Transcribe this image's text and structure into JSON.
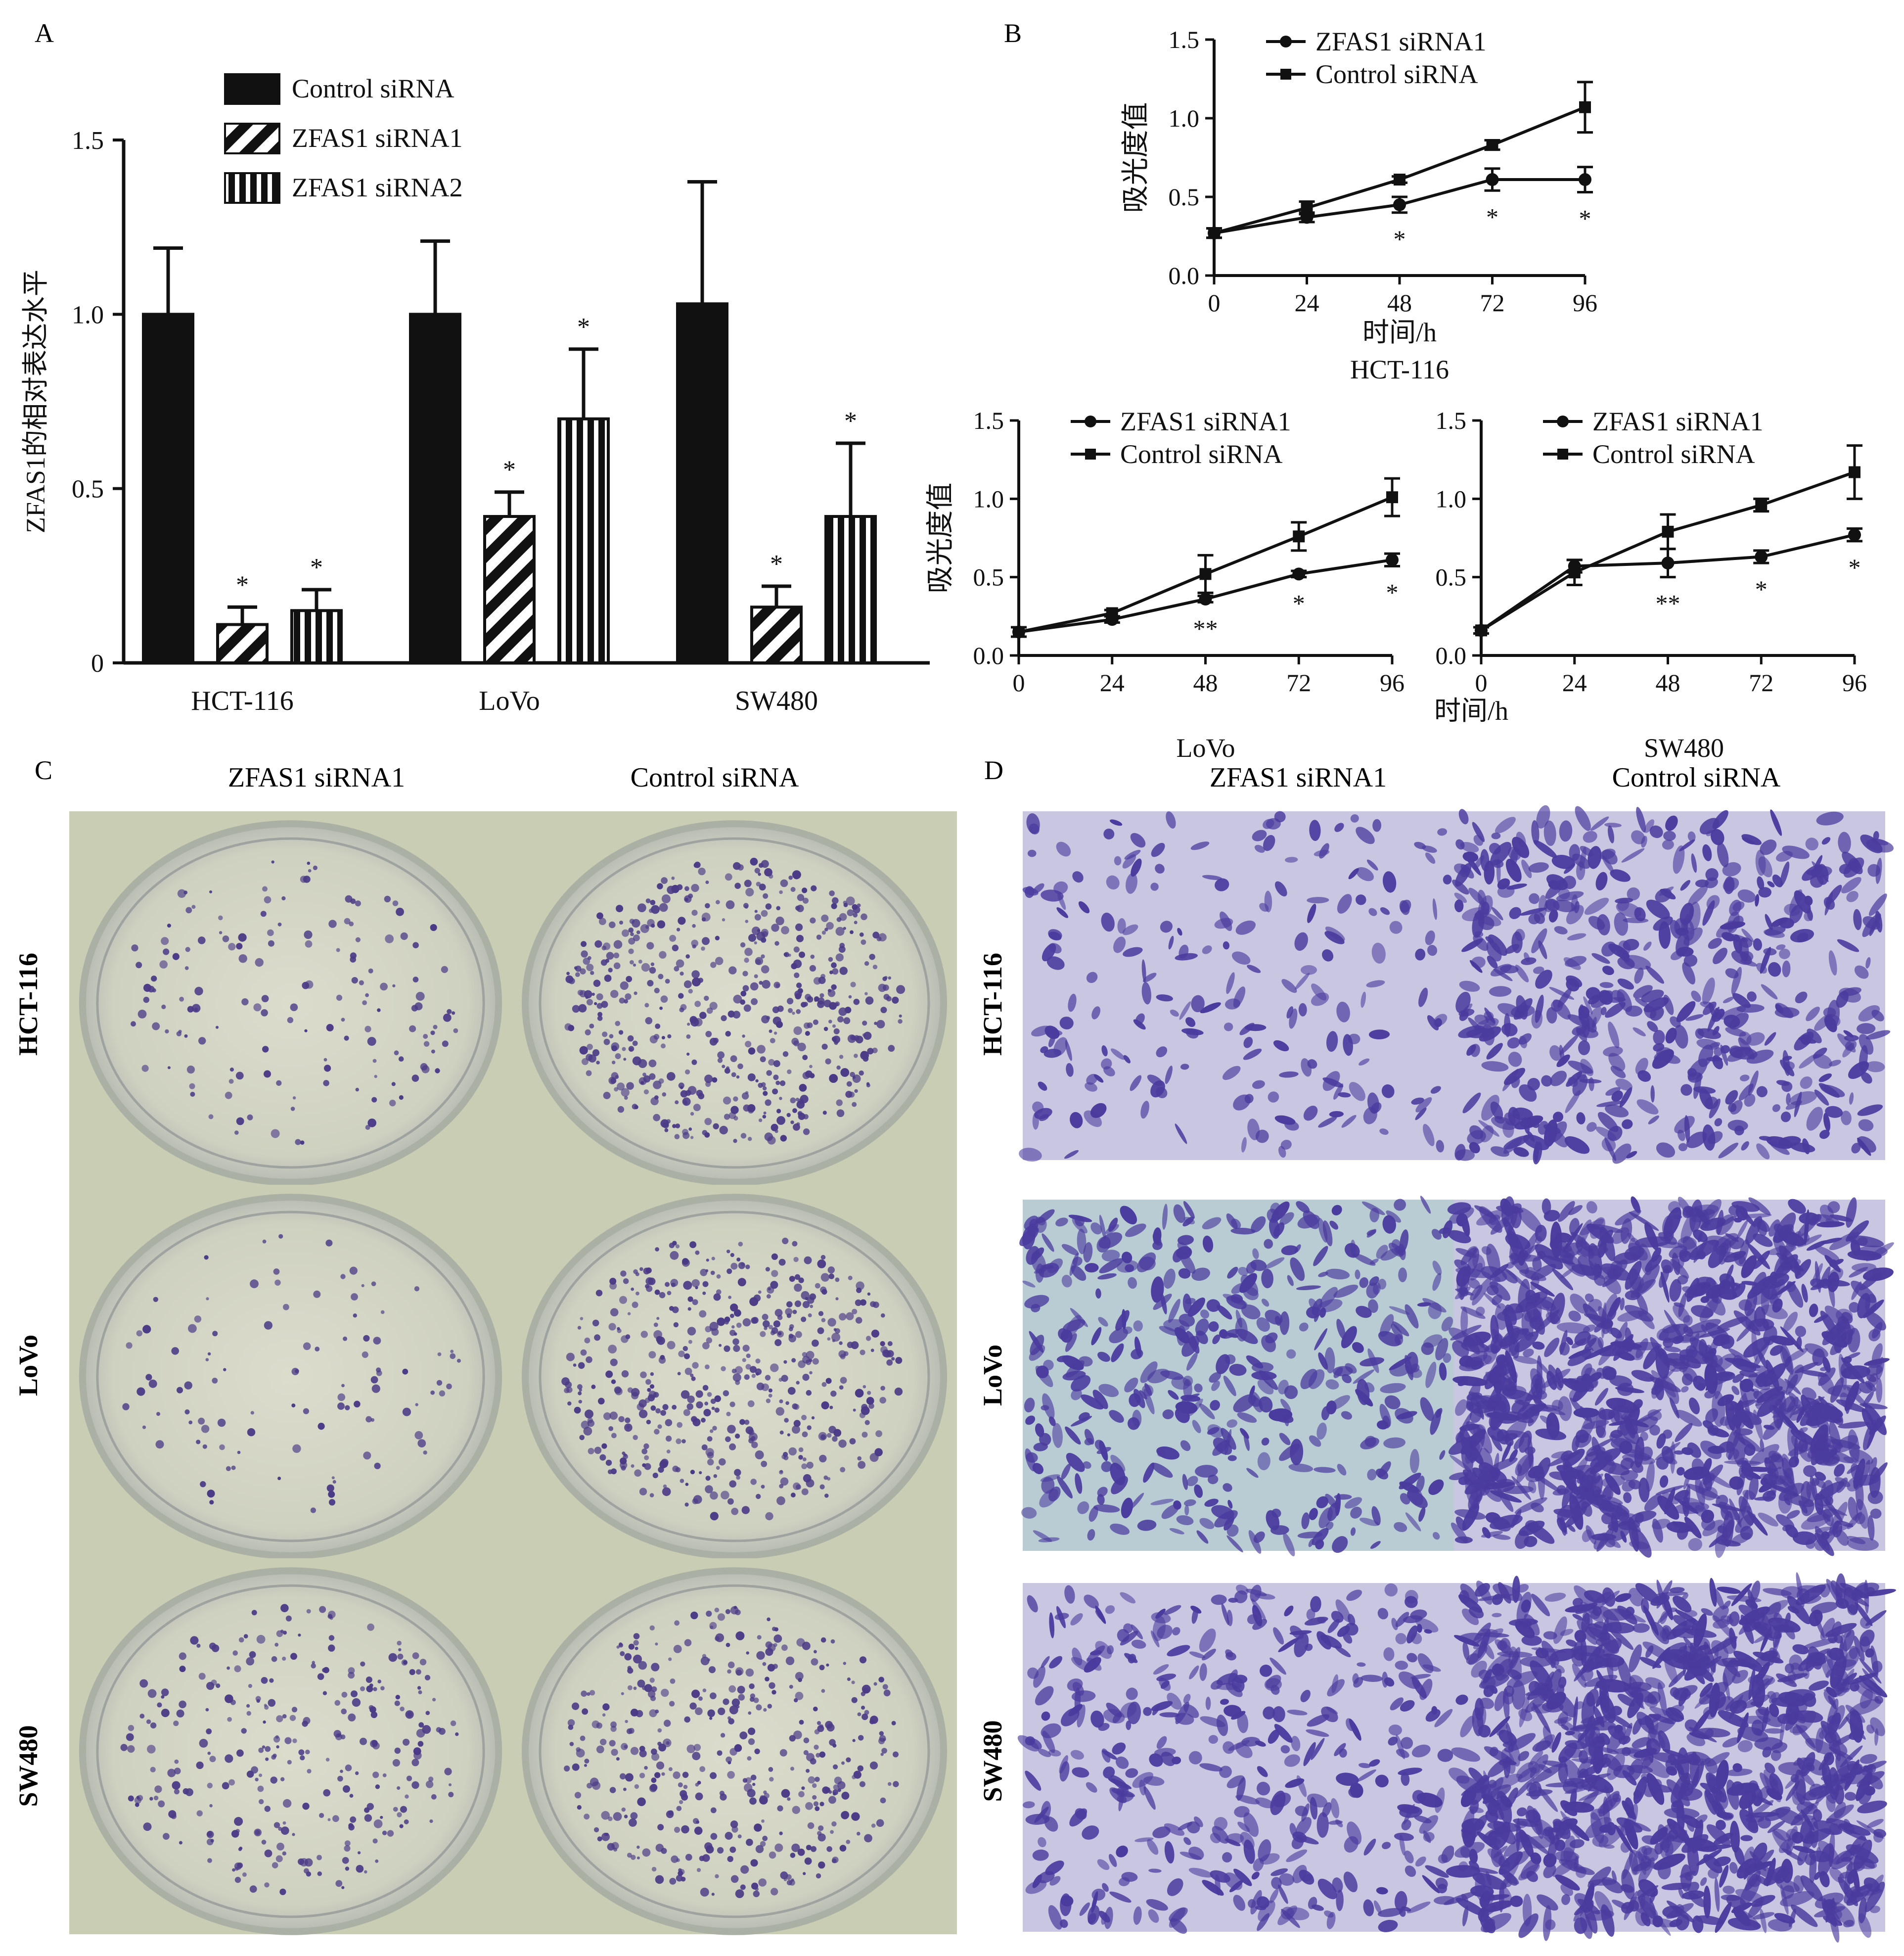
{
  "panels": {
    "A": "A",
    "B": "B",
    "C": "C",
    "D": "D"
  },
  "colors": {
    "ink": "#111111",
    "plate_bg": "#c9cdb4",
    "plate_ring": "#aab0a4",
    "colony": "#4b3a86",
    "micro_bg": "#c8c6e0",
    "micro_bg_lovo": "#b9ccd4",
    "cell": "#4a3b9e"
  },
  "chart_data": [
    {
      "type": "bar",
      "panel": "A",
      "categories": [
        "HCT-116",
        "LoVo",
        "SW480"
      ],
      "series": [
        {
          "name": "Control siRNA",
          "pattern": "solid",
          "values": [
            1.0,
            1.0,
            1.03
          ],
          "errors": [
            0.19,
            0.21,
            0.35
          ],
          "sig": [
            "",
            "",
            ""
          ]
        },
        {
          "name": "ZFAS1 siRNA1",
          "pattern": "diagonal",
          "values": [
            0.11,
            0.42,
            0.16
          ],
          "errors": [
            0.05,
            0.07,
            0.06
          ],
          "sig": [
            "*",
            "*",
            "*"
          ]
        },
        {
          "name": "ZFAS1 siRNA2",
          "pattern": "vertical",
          "values": [
            0.15,
            0.7,
            0.42
          ],
          "errors": [
            0.06,
            0.2,
            0.21
          ],
          "sig": [
            "*",
            "*",
            "*"
          ]
        }
      ],
      "ylabel": "ZFAS1的相对表达水平",
      "ylim": [
        0,
        1.5
      ],
      "yticks": [
        "0",
        "0.5",
        "1.0",
        "1.5"
      ],
      "legend": "top-left"
    },
    {
      "type": "line",
      "panel": "B",
      "title": "HCT-116",
      "xlabel": "时间/h",
      "ylabel": "吸光度值",
      "x": [
        0,
        24,
        48,
        72,
        96
      ],
      "xticks": [
        "0",
        "24",
        "48",
        "72",
        "96"
      ],
      "ylim": [
        0,
        1.5
      ],
      "yticks": [
        "0.0",
        "0.5",
        "1.0",
        "1.5"
      ],
      "series": [
        {
          "name": "ZFAS1 siRNA1",
          "marker": "circle",
          "values": [
            0.27,
            0.37,
            0.45,
            0.61,
            0.61
          ],
          "errors": [
            0.03,
            0.03,
            0.05,
            0.07,
            0.08
          ]
        },
        {
          "name": "Control siRNA",
          "marker": "square",
          "values": [
            0.27,
            0.43,
            0.61,
            0.83,
            1.07
          ],
          "errors": [
            0.03,
            0.04,
            0.02,
            0.03,
            0.16
          ]
        }
      ],
      "annotations": [
        {
          "x": 48,
          "text": "*"
        },
        {
          "x": 72,
          "text": "*"
        },
        {
          "x": 96,
          "text": "*"
        }
      ]
    },
    {
      "type": "line",
      "panel": "B",
      "title": "LoVo",
      "xlabel": "时间/h",
      "ylabel": "吸光度值",
      "x": [
        0,
        24,
        48,
        72,
        96
      ],
      "xticks": [
        "0",
        "24",
        "48",
        "72",
        "96"
      ],
      "ylim": [
        0,
        1.5
      ],
      "yticks": [
        "0.0",
        "0.5",
        "1.0",
        "1.5"
      ],
      "series": [
        {
          "name": "ZFAS1 siRNA1",
          "marker": "circle",
          "values": [
            0.15,
            0.23,
            0.36,
            0.52,
            0.61
          ],
          "errors": [
            0.03,
            0.02,
            0.02,
            0.02,
            0.04
          ]
        },
        {
          "name": "Control siRNA",
          "marker": "square",
          "values": [
            0.15,
            0.27,
            0.52,
            0.76,
            1.01
          ],
          "errors": [
            0.03,
            0.02,
            0.12,
            0.09,
            0.12
          ]
        }
      ],
      "annotations": [
        {
          "x": 48,
          "text": "**"
        },
        {
          "x": 72,
          "text": "*"
        },
        {
          "x": 96,
          "text": "*"
        }
      ]
    },
    {
      "type": "line",
      "panel": "B",
      "title": "SW480",
      "xlabel": "",
      "ylabel": "",
      "x": [
        0,
        24,
        48,
        72,
        96
      ],
      "xticks": [
        "0",
        "24",
        "48",
        "72",
        "96"
      ],
      "ylim": [
        0,
        1.5
      ],
      "yticks": [
        "0.0",
        "0.5",
        "1.0",
        "1.5"
      ],
      "series": [
        {
          "name": "ZFAS1 siRNA1",
          "marker": "circle",
          "values": [
            0.16,
            0.57,
            0.59,
            0.63,
            0.77
          ],
          "errors": [
            0.02,
            0.04,
            0.09,
            0.04,
            0.04
          ]
        },
        {
          "name": "Control siRNA",
          "marker": "square",
          "values": [
            0.16,
            0.53,
            0.79,
            0.96,
            1.17
          ],
          "errors": [
            0.02,
            0.08,
            0.11,
            0.04,
            0.17
          ]
        }
      ],
      "annotations": [
        {
          "x": 48,
          "text": "**"
        },
        {
          "x": 72,
          "text": "*"
        },
        {
          "x": 96,
          "text": "*"
        }
      ]
    }
  ],
  "panel_c": {
    "columns": [
      "ZFAS1 siRNA1",
      "Control siRNA"
    ],
    "rows": [
      "HCT-116",
      "LoVo",
      "SW480"
    ],
    "colony_density": [
      [
        0.18,
        0.95
      ],
      [
        0.08,
        0.85
      ],
      [
        0.45,
        0.7
      ]
    ]
  },
  "panel_d": {
    "columns": [
      "ZFAS1 siRNA1",
      "Control siRNA"
    ],
    "rows": [
      "HCT-116",
      "LoVo",
      "SW480"
    ],
    "cell_density": [
      [
        0.12,
        0.45
      ],
      [
        0.35,
        0.95
      ],
      [
        0.3,
        0.9
      ]
    ]
  }
}
